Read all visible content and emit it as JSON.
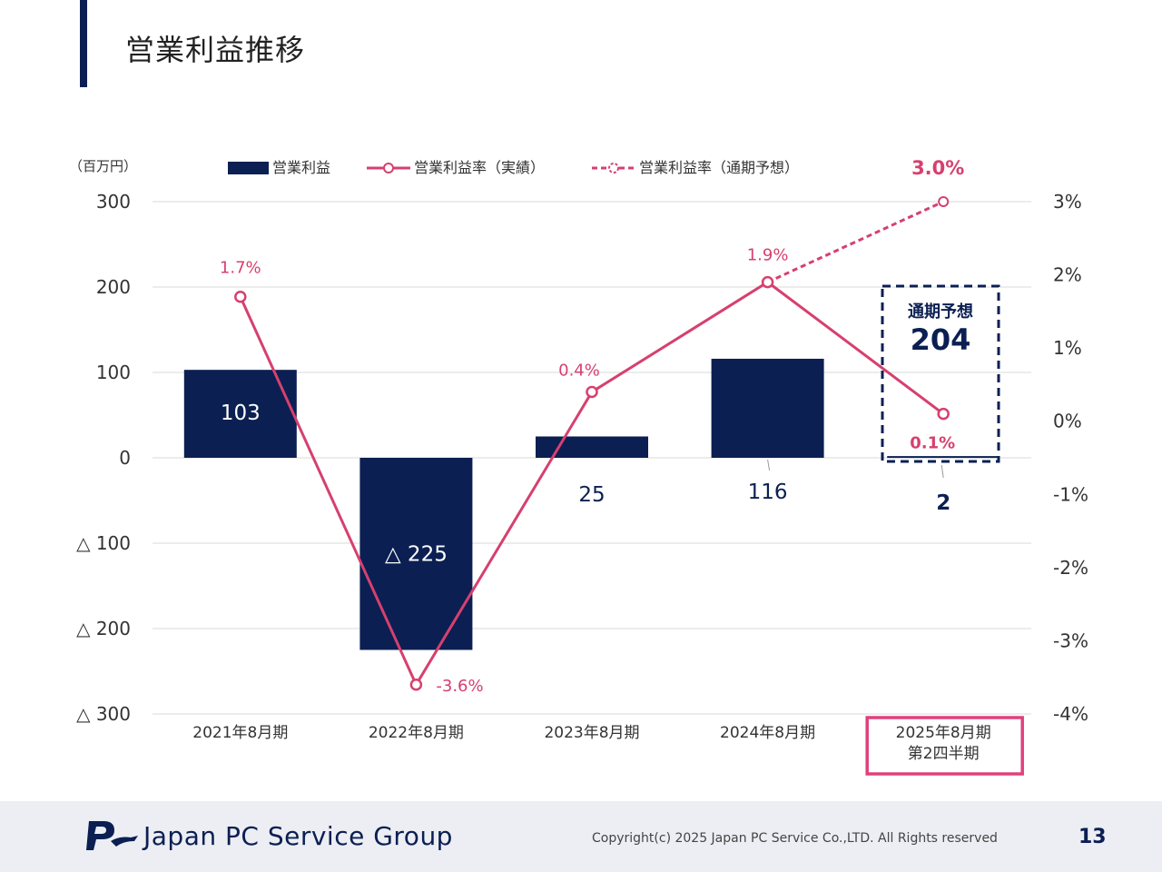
{
  "page": {
    "title": "営業利益推移",
    "company": "Japan PC Service Group",
    "copyright": "Copyright(c) 2025 Japan PC Service Co.,LTD. All Rights reserved",
    "page_number": "13"
  },
  "colors": {
    "bar": "#0b1f52",
    "line": "#d6406f",
    "forecast_box": "#0b1f52",
    "highlight_box": "#e0407a",
    "grid": "#d9d9d9"
  },
  "chart_data": {
    "type": "bar",
    "title": "",
    "y_unit_label": "（百万円）",
    "categories": [
      "2021年8月期",
      "2022年8月期",
      "2023年8月期",
      "2024年8月期",
      "2025年8月期\n第2四半期"
    ],
    "ylim": [
      -300,
      300
    ],
    "y_ticks": [
      300,
      200,
      100,
      0,
      -100,
      -200,
      -300
    ],
    "y_tick_labels": [
      "300",
      "200",
      "100",
      "0",
      "△ 100",
      "△ 200",
      "△ 300"
    ],
    "y2lim": [
      -4,
      3
    ],
    "y2_tick_labels": [
      "3%",
      "2%",
      "1%",
      "0%",
      "-1%",
      "-2%",
      "-3%",
      "-4%"
    ],
    "y2_ticks": [
      3,
      2,
      1,
      0,
      -1,
      -2,
      -3,
      -4
    ],
    "legend_position": "top",
    "series": [
      {
        "name": "営業利益",
        "kind": "bar",
        "values": [
          103,
          -225,
          25,
          116,
          2
        ],
        "labels": [
          "103",
          "△ 225",
          "25",
          "116",
          "2"
        ]
      },
      {
        "name": "営業利益率（実績）",
        "kind": "line",
        "axis": "right",
        "values": [
          1.7,
          -3.6,
          0.4,
          1.9,
          0.1
        ],
        "labels": [
          "1.7%",
          "-3.6%",
          "0.4%",
          "1.9%",
          "0.1%"
        ]
      },
      {
        "name": "営業利益率（通期予想）",
        "kind": "line-dashed",
        "axis": "right",
        "points": [
          {
            "x": 3,
            "value": 1.9
          },
          {
            "x": 4,
            "value": 3.0
          }
        ],
        "labels": [
          "3.0%"
        ]
      }
    ],
    "forecast": {
      "label": "通期予想",
      "value": "204"
    },
    "highlight_category_index": 4
  }
}
